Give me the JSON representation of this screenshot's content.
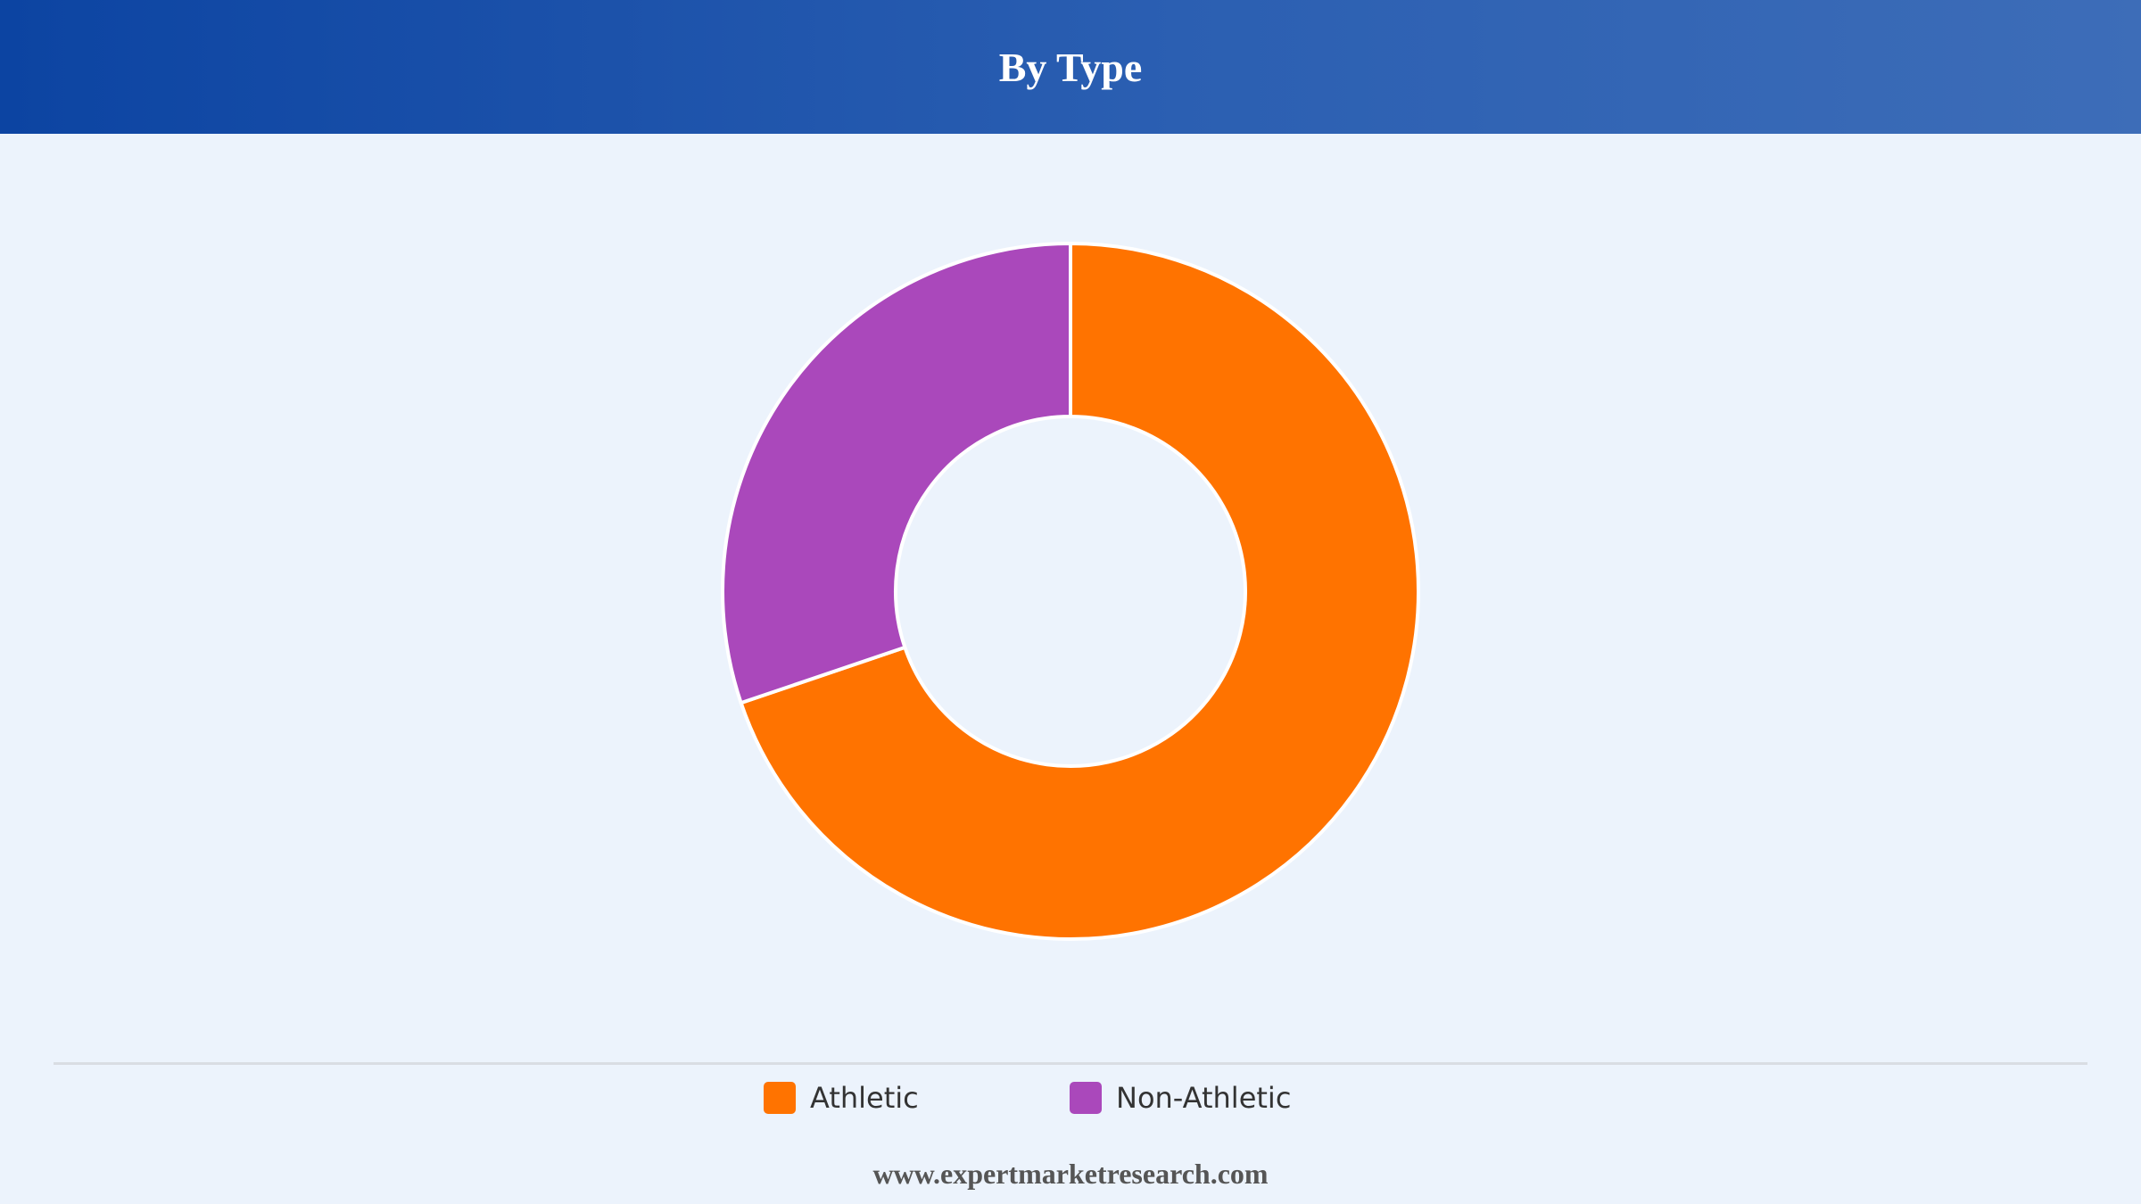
{
  "header": {
    "title": "By Type"
  },
  "chart_data": {
    "type": "pie",
    "subtype": "donut",
    "categories": [
      "Athletic",
      "Non-Athletic"
    ],
    "values": [
      69.8,
      30.2
    ],
    "colors": [
      "#ff7300",
      "#aa48bb"
    ],
    "legend": "bottom"
  },
  "legend": {
    "items": [
      {
        "label": "Athletic",
        "color": "#ff7300"
      },
      {
        "label": "Non-Athletic",
        "color": "#aa48bb"
      }
    ]
  },
  "footer": {
    "text": "www.expertmarketresearch.com"
  }
}
